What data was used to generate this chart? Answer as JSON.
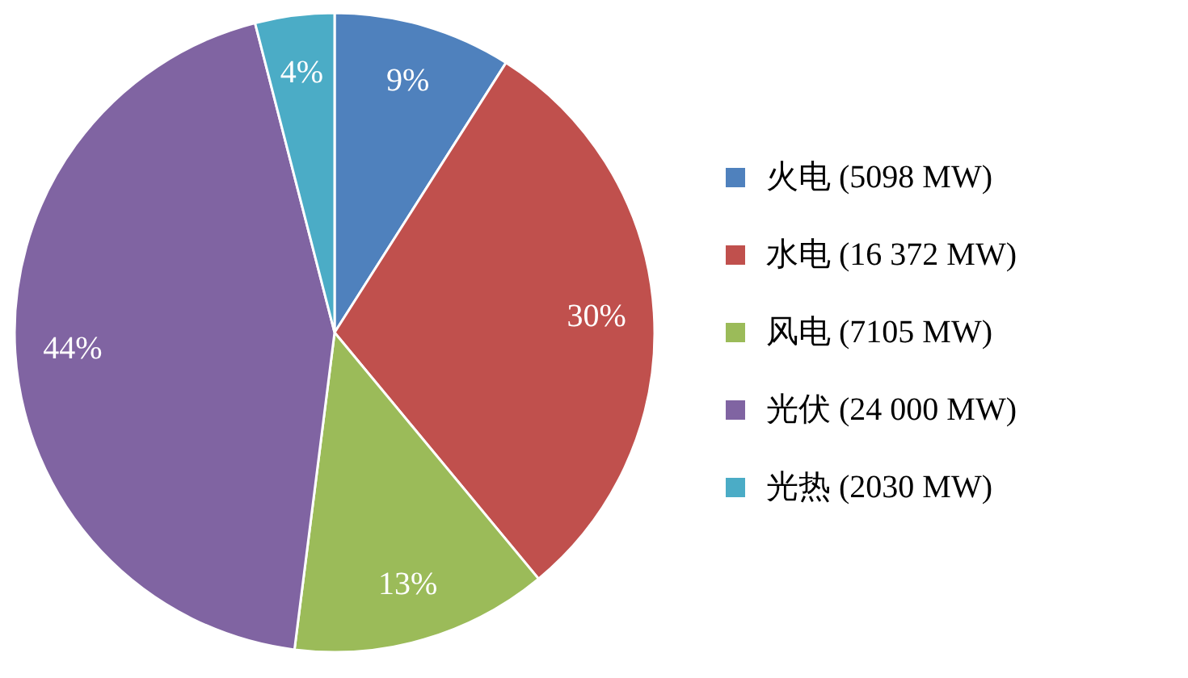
{
  "chart_data": {
    "type": "pie",
    "categories": [
      "火电 (5098 MW)",
      "水电 (16 372 MW)",
      "风电 (7105 MW)",
      "光伏 (24 000 MW)",
      "光热 (2030 MW)"
    ],
    "values": [
      9,
      30,
      13,
      44,
      4
    ],
    "value_labels": [
      "9%",
      "30%",
      "13%",
      "44%",
      "4%"
    ],
    "colors": [
      "#4f81bd",
      "#c0504d",
      "#9bbb59",
      "#8064a2",
      "#4bacc6"
    ],
    "legend": "right"
  }
}
